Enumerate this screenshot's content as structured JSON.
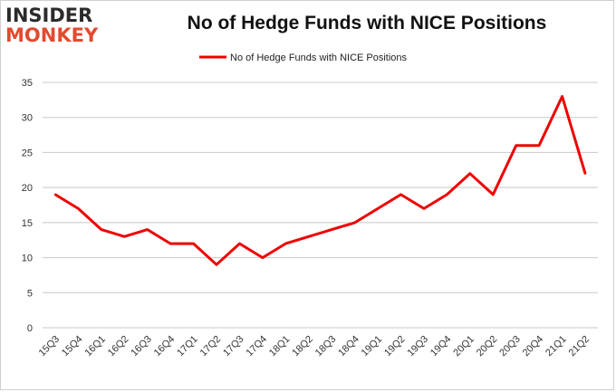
{
  "logo": {
    "top_text": "INSIDER",
    "bottom_text": "MONKEY"
  },
  "colors": {
    "series": "#ee0000",
    "grid": "#c8c8c8",
    "logo_dark": "#2b2b2b",
    "logo_accent": "#e24a2f"
  },
  "chart_data": {
    "type": "line",
    "title": "No of Hedge Funds with NICE Positions",
    "legend_placement": "top-center",
    "grid": true,
    "ylim": [
      0,
      35
    ],
    "yticks": [
      0,
      5,
      10,
      15,
      20,
      25,
      30,
      35
    ],
    "categories": [
      "15Q3",
      "15Q4",
      "16Q1",
      "16Q2",
      "16Q3",
      "16Q4",
      "17Q1",
      "17Q2",
      "17Q3",
      "17Q4",
      "18Q1",
      "18Q2",
      "18Q3",
      "18Q4",
      "19Q1",
      "19Q2",
      "19Q3",
      "19Q4",
      "20Q1",
      "20Q2",
      "20Q3",
      "20Q4",
      "21Q1",
      "21Q2"
    ],
    "series": [
      {
        "name": "No of Hedge Funds with NICE Positions",
        "values": [
          19,
          17,
          14,
          13,
          14,
          12,
          12,
          9,
          12,
          10,
          12,
          13,
          14,
          15,
          17,
          19,
          17,
          19,
          22,
          19,
          26,
          26,
          33,
          22
        ]
      }
    ]
  }
}
